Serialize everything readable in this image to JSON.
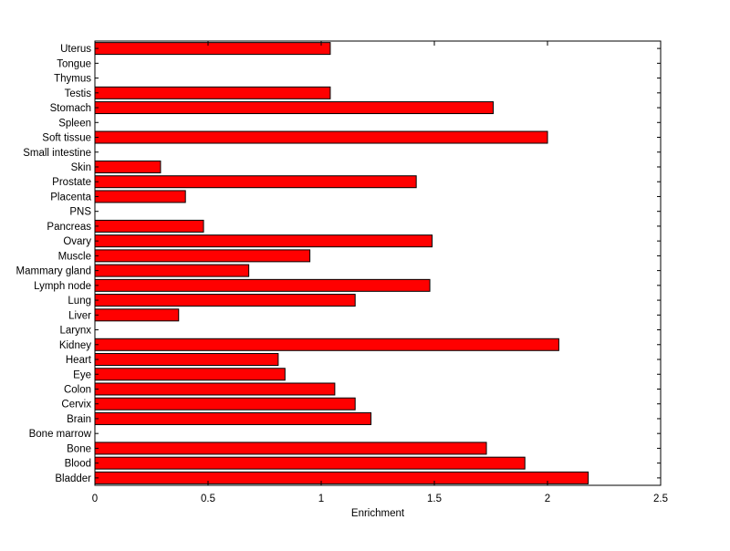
{
  "chart_data": {
    "type": "bar",
    "orientation": "horizontal",
    "categories": [
      "Bladder",
      "Blood",
      "Bone",
      "Bone marrow",
      "Brain",
      "Cervix",
      "Colon",
      "Eye",
      "Heart",
      "Kidney",
      "Larynx",
      "Liver",
      "Lung",
      "Lymph node",
      "Mammary gland",
      "Muscle",
      "Ovary",
      "Pancreas",
      "PNS",
      "Placenta",
      "Prostate",
      "Skin",
      "Small intestine",
      "Soft tissue",
      "Spleen",
      "Stomach",
      "Testis",
      "Thymus",
      "Tongue",
      "Uterus"
    ],
    "values": [
      2.18,
      1.9,
      1.73,
      0,
      1.22,
      1.15,
      1.06,
      0.84,
      0.81,
      2.05,
      0,
      0.37,
      1.15,
      1.48,
      0.68,
      0.95,
      1.49,
      0.48,
      0,
      0.4,
      1.42,
      0.29,
      0,
      2.0,
      0,
      1.76,
      1.04,
      0,
      0,
      1.04
    ],
    "xlabel": "Enrichment",
    "ylabel": "",
    "title": "",
    "xlim": [
      0,
      2.5
    ],
    "xticks": [
      0,
      0.5,
      1,
      1.5,
      2,
      2.5
    ],
    "xtick_labels": [
      "0",
      "0.5",
      "1",
      "1.5",
      "2",
      "2.5"
    ],
    "bar_color": "#ff0000",
    "bar_edge_color": "#000000",
    "grid": false
  }
}
